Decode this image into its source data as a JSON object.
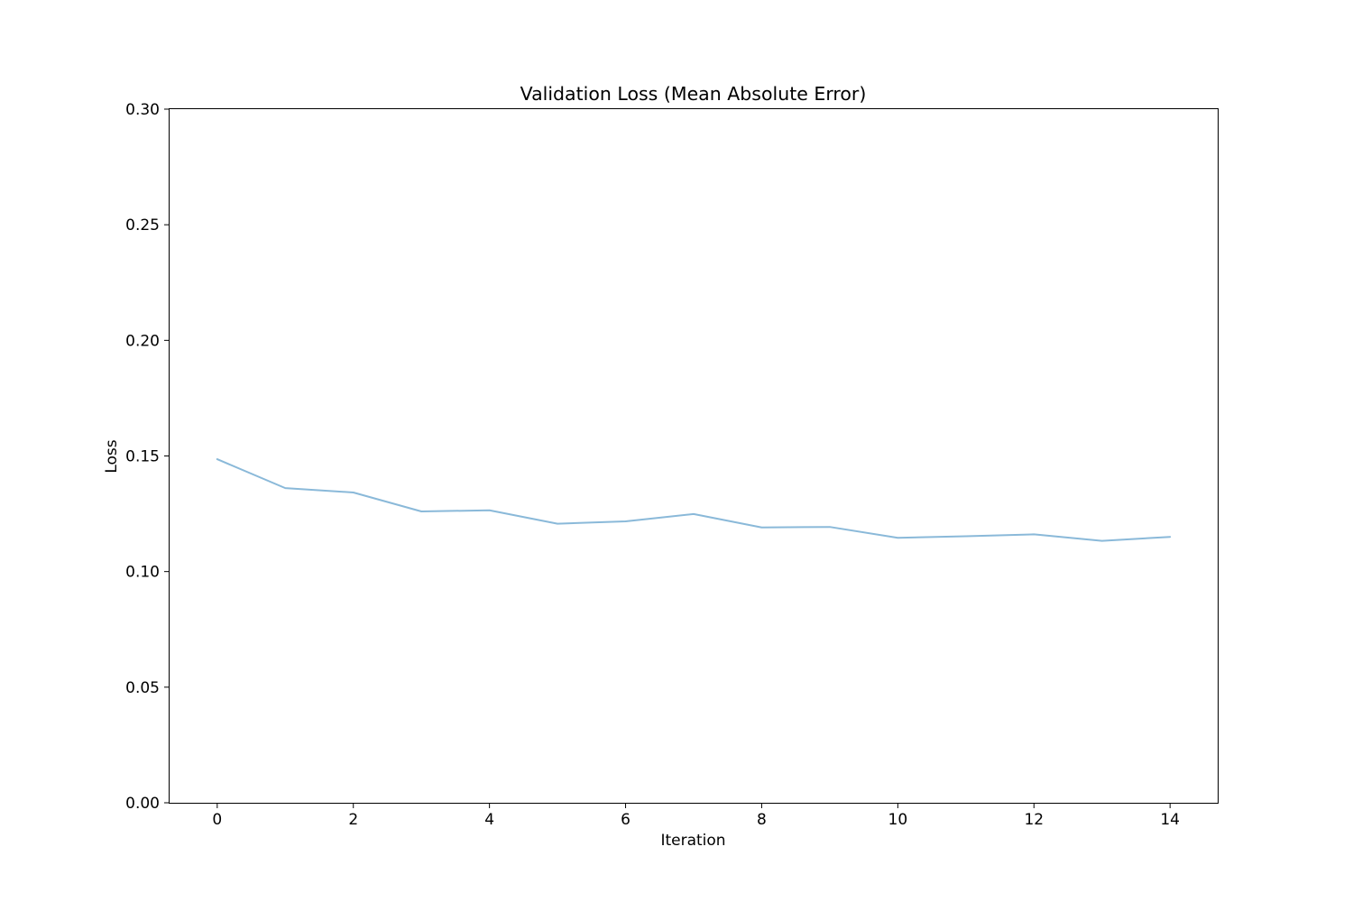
{
  "chart_data": {
    "type": "line",
    "title": "Validation Loss (Mean Absolute Error)",
    "xlabel": "Iteration",
    "ylabel": "Loss",
    "xlim": [
      -0.7,
      14.7
    ],
    "ylim": [
      0,
      0.3
    ],
    "x_ticks": [
      0,
      2,
      4,
      6,
      8,
      10,
      12,
      14
    ],
    "y_ticks": [
      0.0,
      0.05,
      0.1,
      0.15,
      0.2,
      0.25,
      0.3
    ],
    "x_tick_labels": [
      "0",
      "2",
      "4",
      "6",
      "8",
      "10",
      "12",
      "14"
    ],
    "y_tick_labels": [
      "0.00",
      "0.05",
      "0.10",
      "0.15",
      "0.20",
      "0.25",
      "0.30"
    ],
    "grid": false,
    "legend": "none",
    "series": [
      {
        "color": "#8ab9d9",
        "x": [
          0,
          1,
          2,
          3,
          4,
          5,
          6,
          7,
          8,
          9,
          10,
          11,
          12,
          13,
          14
        ],
        "values": [
          0.1486,
          0.1361,
          0.1342,
          0.126,
          0.1265,
          0.1207,
          0.1217,
          0.1249,
          0.1191,
          0.1193,
          0.1146,
          0.1153,
          0.1161,
          0.1133,
          0.115
        ]
      }
    ]
  }
}
